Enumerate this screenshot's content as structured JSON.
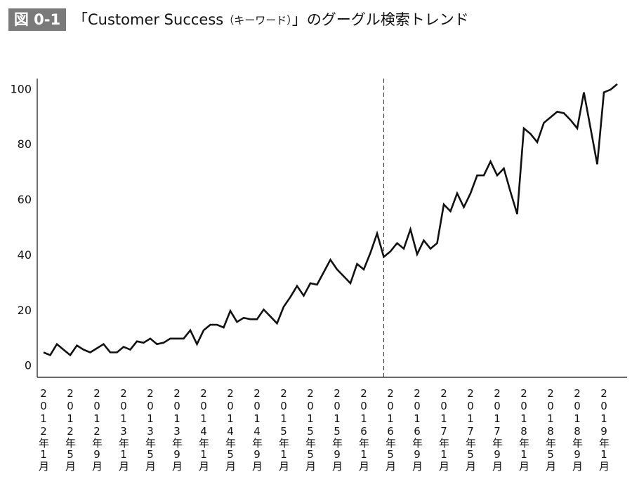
{
  "chart_data": {
    "type": "line",
    "figure_label": "図 0-1",
    "title": [
      "「Customer Success",
      "（キーワード）",
      "」のグーグル検索トレンド"
    ],
    "categories": [
      "2012年1月",
      null,
      null,
      null,
      "2012年5月",
      null,
      null,
      null,
      "2012年9月",
      null,
      null,
      null,
      "2013年1月",
      null,
      null,
      null,
      "2013年5月",
      null,
      null,
      null,
      "2013年9月",
      null,
      null,
      null,
      "2014年1月",
      null,
      null,
      null,
      "2014年5月",
      null,
      null,
      null,
      "2014年9月",
      null,
      null,
      null,
      "2015年1月",
      null,
      null,
      null,
      "2015年5月",
      null,
      null,
      null,
      "2015年9月",
      null,
      null,
      null,
      "2016年1月",
      null,
      null,
      null,
      "2016年5月",
      null,
      null,
      null,
      "2016年9月",
      null,
      null,
      null,
      "2017年1月",
      null,
      null,
      null,
      "2017年5月",
      null,
      null,
      null,
      "2017年9月",
      null,
      null,
      null,
      "2018年1月",
      null,
      null,
      null,
      "2018年5月",
      null,
      null,
      null,
      "2018年9月",
      null,
      null,
      null,
      "2019年1月",
      null,
      null
    ],
    "values": [
      5,
      4,
      8,
      6,
      4,
      7.5,
      6,
      5,
      6.5,
      8,
      5,
      5,
      7,
      6,
      9,
      8.5,
      10,
      8,
      8.5,
      10,
      10,
      10,
      13,
      8,
      13,
      15,
      15,
      14,
      20,
      16,
      17.5,
      17,
      17,
      20.5,
      18,
      15.5,
      21.5,
      25,
      29,
      25.5,
      30,
      29.5,
      34,
      38.5,
      35,
      32.5,
      30,
      37,
      35,
      41,
      48,
      39.5,
      41.5,
      44.5,
      42.5,
      49.5,
      40.5,
      45.5,
      42.5,
      44.5,
      58.5,
      56,
      62.5,
      57.5,
      62.5,
      69,
      69,
      74,
      69,
      71.5,
      63,
      55,
      86,
      84,
      81,
      88,
      90,
      92,
      91.5,
      89,
      86,
      99,
      86,
      73,
      99,
      100,
      102
    ],
    "color": "#111111",
    "ylim": [
      -4,
      104
    ],
    "yticks": [
      0,
      20,
      40,
      60,
      80,
      100
    ],
    "vline_index": 51
  }
}
